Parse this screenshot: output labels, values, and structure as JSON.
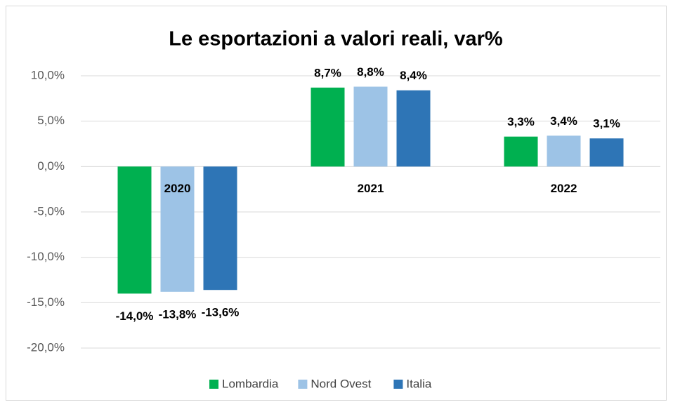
{
  "chart_data": {
    "type": "bar",
    "title": "Le esportazioni a valori reali, var%",
    "categories": [
      "2020",
      "2021",
      "2022"
    ],
    "series": [
      {
        "name": "Lombardia",
        "color": "#00b050",
        "values": [
          -14.0,
          8.7,
          3.3
        ],
        "value_labels": [
          "-14,0%",
          "8,7%",
          "3,3%"
        ]
      },
      {
        "name": "Nord Ovest",
        "color": "#9dc3e6",
        "values": [
          -13.8,
          8.8,
          3.4
        ],
        "value_labels": [
          "-13,8%",
          "8,8%",
          "3,4%"
        ]
      },
      {
        "name": "Italia",
        "color": "#2e75b6",
        "values": [
          -13.6,
          8.4,
          3.1
        ],
        "value_labels": [
          "-13,6%",
          "8,4%",
          "3,1%"
        ]
      }
    ],
    "ylim": [
      -20,
      10
    ],
    "yticks": [
      {
        "value": -20,
        "label": "-20,0%"
      },
      {
        "value": -15,
        "label": "-15,0%"
      },
      {
        "value": -10,
        "label": "-10,0%"
      },
      {
        "value": -5,
        "label": "-5,0%"
      },
      {
        "value": 0,
        "label": "0,0%"
      },
      {
        "value": 5,
        "label": "5,0%"
      },
      {
        "value": 10,
        "label": "10,0%"
      }
    ],
    "grid": true,
    "legend": "bottom"
  }
}
